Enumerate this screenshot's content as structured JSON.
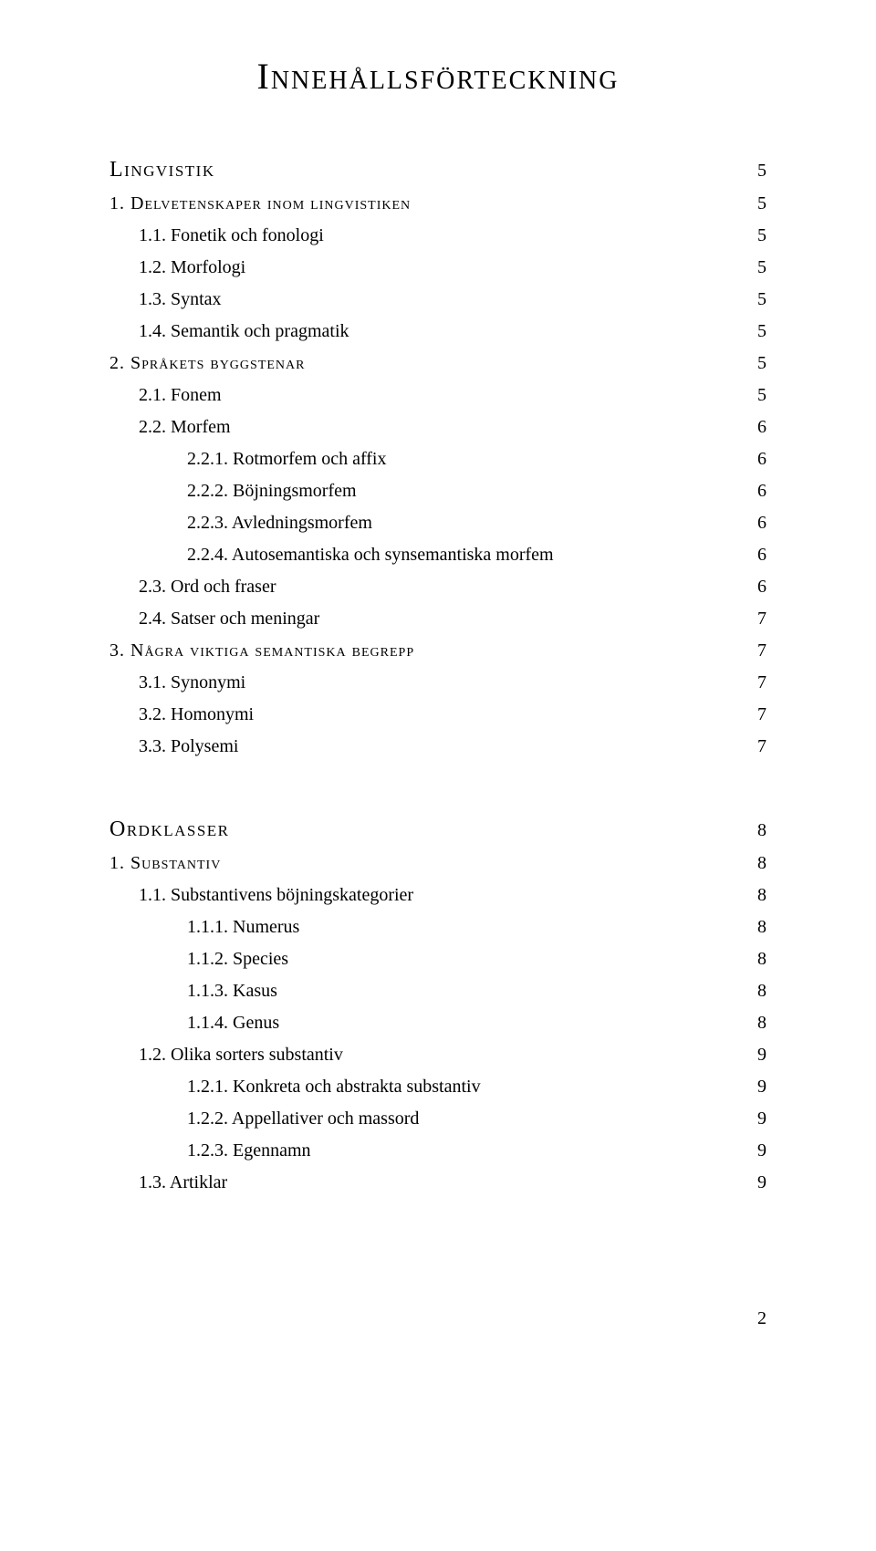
{
  "title": "Innehållsförteckning",
  "entries": [
    {
      "text": "Lingvistik",
      "page": "5",
      "cls": "section-head",
      "indent": 0
    },
    {
      "text": "1. Delvetenskaper inom lingvistiken",
      "page": "5",
      "cls": "l1",
      "indent": 0
    },
    {
      "text": "1.1.  Fonetik och fonologi",
      "page": "5",
      "cls": "l2",
      "indent": 1
    },
    {
      "text": "1.2.  Morfologi",
      "page": "5",
      "cls": "l2",
      "indent": 1
    },
    {
      "text": "1.3.  Syntax",
      "page": "5",
      "cls": "l2",
      "indent": 1
    },
    {
      "text": "1.4.  Semantik och pragmatik",
      "page": "5",
      "cls": "l2",
      "indent": 1
    },
    {
      "text": "2. Språkets byggstenar",
      "page": "5",
      "cls": "l1",
      "indent": 0
    },
    {
      "text": "2.1.  Fonem",
      "page": "5",
      "cls": "l2",
      "indent": 1
    },
    {
      "text": "2.2.  Morfem",
      "page": "6",
      "cls": "l2",
      "indent": 1
    },
    {
      "text": "2.2.1.   Rotmorfem och affix",
      "page": "6",
      "cls": "l3",
      "indent": 2
    },
    {
      "text": "2.2.2.   Böjningsmorfem",
      "page": "6",
      "cls": "l3",
      "indent": 2
    },
    {
      "text": "2.2.3.   Avledningsmorfem",
      "page": "6",
      "cls": "l3",
      "indent": 2
    },
    {
      "text": "2.2.4.   Autosemantiska och synsemantiska morfem",
      "page": "6",
      "cls": "l3",
      "indent": 2
    },
    {
      "text": "2.3.  Ord och fraser",
      "page": "6",
      "cls": "l2",
      "indent": 1
    },
    {
      "text": "2.4.  Satser och meningar",
      "page": "7",
      "cls": "l2",
      "indent": 1
    },
    {
      "text": "3. Några viktiga semantiska begrepp",
      "page": "7",
      "cls": "l1",
      "indent": 0
    },
    {
      "text": "3.1.  Synonymi",
      "page": "7",
      "cls": "l2",
      "indent": 1
    },
    {
      "text": "3.2.  Homonymi",
      "page": "7",
      "cls": "l2",
      "indent": 1
    },
    {
      "text": "3.3.  Polysemi",
      "page": "7",
      "cls": "l2",
      "indent": 1
    },
    {
      "gap": true
    },
    {
      "text": "Ordklasser",
      "page": "8",
      "cls": "section-head",
      "indent": 0
    },
    {
      "text": "1. Substantiv",
      "page": "8",
      "cls": "l1",
      "indent": 0
    },
    {
      "text": "1.1.  Substantivens böjningskategorier",
      "page": "8",
      "cls": "l2",
      "indent": 1
    },
    {
      "text": "1.1.1.   Numerus",
      "page": "8",
      "cls": "l3",
      "indent": 2
    },
    {
      "text": "1.1.2.   Species",
      "page": "8",
      "cls": "l3",
      "indent": 2
    },
    {
      "text": "1.1.3.   Kasus",
      "page": "8",
      "cls": "l3",
      "indent": 2
    },
    {
      "text": "1.1.4.   Genus",
      "page": "8",
      "cls": "l3",
      "indent": 2
    },
    {
      "text": "1.2.  Olika sorters substantiv",
      "page": "9",
      "cls": "l2",
      "indent": 1
    },
    {
      "text": "1.2.1.   Konkreta och abstrakta substantiv",
      "page": "9",
      "cls": "l3",
      "indent": 2
    },
    {
      "text": "1.2.2.   Appellativer och massord",
      "page": "9",
      "cls": "l3",
      "indent": 2
    },
    {
      "text": "1.2.3.   Egennamn",
      "page": "9",
      "cls": "l3",
      "indent": 2
    },
    {
      "text": "1.3.  Artiklar",
      "page": "9",
      "cls": "l2",
      "indent": 1
    }
  ],
  "footer": "2",
  "colors": {
    "background": "#ffffff",
    "text": "#000000"
  },
  "typography": {
    "title_fontsize": 40,
    "section_fontsize": 24,
    "l1_fontsize": 20,
    "l2_fontsize": 20,
    "body_family": "Georgia",
    "display_family_fallback": "Trajan Pro / Optima / Palatino"
  }
}
